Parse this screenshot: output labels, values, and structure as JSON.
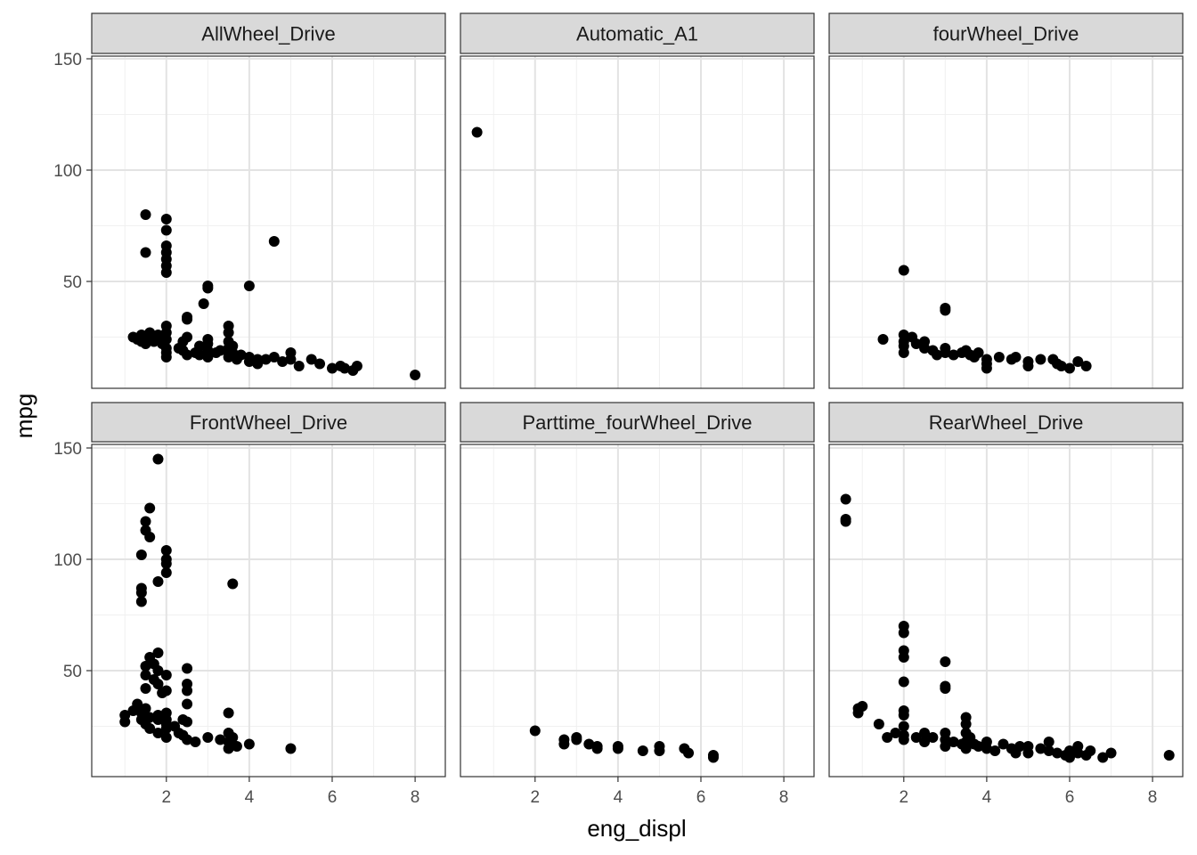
{
  "chart_data": {
    "type": "scatter",
    "xlabel": "eng_displ",
    "ylabel": "mpg",
    "xlim": [
      0.2,
      8.7
    ],
    "ylim": [
      5,
      155
    ],
    "x_ticks": [
      2,
      4,
      6,
      8
    ],
    "y_ticks": [
      50,
      100,
      150
    ],
    "x_tick_labels": [
      "2",
      "4",
      "6",
      "8"
    ],
    "y_tick_labels": [
      "50",
      "100",
      "150"
    ],
    "grid": true,
    "facet_layout": "2 rows x 3 columns, shared axes",
    "point_color": "#000000",
    "panels": [
      {
        "label": "AllWheel_Drive",
        "points": [
          [
            1.2,
            25
          ],
          [
            1.3,
            24
          ],
          [
            1.4,
            23
          ],
          [
            1.4,
            26
          ],
          [
            1.5,
            24
          ],
          [
            1.5,
            22
          ],
          [
            1.6,
            27
          ],
          [
            1.6,
            25
          ],
          [
            1.7,
            23
          ],
          [
            1.8,
            24
          ],
          [
            1.8,
            26
          ],
          [
            1.9,
            22
          ],
          [
            2.0,
            24
          ],
          [
            2.0,
            20
          ],
          [
            2.0,
            18
          ],
          [
            2.0,
            27
          ],
          [
            2.0,
            30
          ],
          [
            2.0,
            16
          ],
          [
            1.5,
            80
          ],
          [
            1.5,
            63
          ],
          [
            2.0,
            78
          ],
          [
            2.0,
            73
          ],
          [
            2.0,
            66
          ],
          [
            2.0,
            63
          ],
          [
            2.0,
            60
          ],
          [
            2.0,
            57
          ],
          [
            2.0,
            54
          ],
          [
            2.3,
            20
          ],
          [
            2.4,
            19
          ],
          [
            2.4,
            23
          ],
          [
            2.5,
            25
          ],
          [
            2.5,
            17
          ],
          [
            2.5,
            33
          ],
          [
            2.5,
            34
          ],
          [
            2.7,
            18
          ],
          [
            2.8,
            21
          ],
          [
            2.8,
            17
          ],
          [
            3.0,
            24
          ],
          [
            3.0,
            19
          ],
          [
            3.0,
            22
          ],
          [
            3.0,
            16
          ],
          [
            3.0,
            47
          ],
          [
            3.0,
            48
          ],
          [
            2.9,
            40
          ],
          [
            3.2,
            18
          ],
          [
            3.3,
            19
          ],
          [
            3.5,
            30
          ],
          [
            3.5,
            27
          ],
          [
            3.5,
            23
          ],
          [
            3.5,
            20
          ],
          [
            3.5,
            18
          ],
          [
            3.5,
            16
          ],
          [
            3.6,
            21
          ],
          [
            3.6,
            18
          ],
          [
            3.7,
            15
          ],
          [
            3.8,
            17
          ],
          [
            4.0,
            16
          ],
          [
            4.0,
            14
          ],
          [
            4.0,
            48
          ],
          [
            4.2,
            15
          ],
          [
            4.2,
            13
          ],
          [
            4.4,
            15
          ],
          [
            4.6,
            16
          ],
          [
            4.6,
            68
          ],
          [
            4.8,
            14
          ],
          [
            5.0,
            18
          ],
          [
            5.0,
            15
          ],
          [
            5.2,
            12
          ],
          [
            5.5,
            15
          ],
          [
            5.7,
            13
          ],
          [
            6.0,
            11
          ],
          [
            6.2,
            12
          ],
          [
            6.3,
            11
          ],
          [
            6.5,
            10
          ],
          [
            6.6,
            12
          ],
          [
            8.0,
            8
          ]
        ]
      },
      {
        "label": "Automatic_A1",
        "points": [
          [
            0.6,
            117
          ]
        ]
      },
      {
        "label": "fourWheel_Drive",
        "points": [
          [
            1.5,
            24
          ],
          [
            2.0,
            55
          ],
          [
            2.0,
            26
          ],
          [
            2.0,
            23
          ],
          [
            2.0,
            21
          ],
          [
            2.0,
            18
          ],
          [
            2.2,
            25
          ],
          [
            2.3,
            22
          ],
          [
            2.5,
            23
          ],
          [
            2.5,
            20
          ],
          [
            2.7,
            19
          ],
          [
            2.8,
            17
          ],
          [
            3.0,
            38
          ],
          [
            3.0,
            37
          ],
          [
            3.0,
            20
          ],
          [
            3.0,
            18
          ],
          [
            3.2,
            17
          ],
          [
            3.4,
            18
          ],
          [
            3.5,
            19
          ],
          [
            3.6,
            17
          ],
          [
            3.7,
            16
          ],
          [
            3.8,
            18
          ],
          [
            4.0,
            15
          ],
          [
            4.0,
            13
          ],
          [
            4.0,
            11
          ],
          [
            4.3,
            16
          ],
          [
            4.6,
            15
          ],
          [
            4.7,
            16
          ],
          [
            5.0,
            14
          ],
          [
            5.0,
            12
          ],
          [
            5.3,
            15
          ],
          [
            5.6,
            15
          ],
          [
            5.7,
            13
          ],
          [
            5.8,
            12
          ],
          [
            6.0,
            11
          ],
          [
            6.2,
            14
          ],
          [
            6.4,
            12
          ]
        ]
      },
      {
        "label": "FrontWheel_Drive",
        "points": [
          [
            1.0,
            30
          ],
          [
            1.0,
            27
          ],
          [
            1.2,
            32
          ],
          [
            1.3,
            35
          ],
          [
            1.4,
            28
          ],
          [
            1.4,
            31
          ],
          [
            1.5,
            33
          ],
          [
            1.5,
            26
          ],
          [
            1.6,
            29
          ],
          [
            1.6,
            24
          ],
          [
            1.8,
            30
          ],
          [
            1.8,
            28
          ],
          [
            1.8,
            22
          ],
          [
            2.0,
            26
          ],
          [
            2.0,
            24
          ],
          [
            2.0,
            20
          ],
          [
            2.0,
            28
          ],
          [
            2.0,
            31
          ],
          [
            1.4,
            102
          ],
          [
            1.4,
            87
          ],
          [
            1.4,
            85
          ],
          [
            1.4,
            81
          ],
          [
            1.5,
            117
          ],
          [
            1.5,
            113
          ],
          [
            1.6,
            123
          ],
          [
            1.6,
            110
          ],
          [
            1.8,
            145
          ],
          [
            1.8,
            90
          ],
          [
            2.0,
            104
          ],
          [
            2.0,
            100
          ],
          [
            2.0,
            98
          ],
          [
            2.0,
            94
          ],
          [
            1.5,
            42
          ],
          [
            1.5,
            48
          ],
          [
            1.5,
            52
          ],
          [
            1.6,
            56
          ],
          [
            1.7,
            46
          ],
          [
            1.7,
            53
          ],
          [
            1.8,
            58
          ],
          [
            1.8,
            50
          ],
          [
            1.8,
            44
          ],
          [
            1.9,
            40
          ],
          [
            2.0,
            48
          ],
          [
            2.0,
            41
          ],
          [
            2.2,
            25
          ],
          [
            2.3,
            22
          ],
          [
            2.4,
            28
          ],
          [
            2.4,
            21
          ],
          [
            2.5,
            51
          ],
          [
            2.5,
            44
          ],
          [
            2.5,
            41
          ],
          [
            2.5,
            35
          ],
          [
            2.5,
            27
          ],
          [
            2.5,
            19
          ],
          [
            2.7,
            18
          ],
          [
            3.0,
            20
          ],
          [
            3.3,
            19
          ],
          [
            3.5,
            31
          ],
          [
            3.5,
            22
          ],
          [
            3.5,
            18
          ],
          [
            3.5,
            15
          ],
          [
            3.6,
            89
          ],
          [
            3.6,
            20
          ],
          [
            3.7,
            16
          ],
          [
            4.0,
            17
          ],
          [
            5.0,
            15
          ]
        ]
      },
      {
        "label": "Parttime_fourWheel_Drive",
        "points": [
          [
            2.0,
            23
          ],
          [
            2.7,
            19
          ],
          [
            2.7,
            17
          ],
          [
            3.0,
            20
          ],
          [
            3.0,
            19
          ],
          [
            3.3,
            17
          ],
          [
            3.5,
            16
          ],
          [
            3.5,
            15
          ],
          [
            4.0,
            16
          ],
          [
            4.0,
            15
          ],
          [
            4.6,
            14
          ],
          [
            5.0,
            16
          ],
          [
            5.0,
            14
          ],
          [
            5.6,
            15
          ],
          [
            5.7,
            13
          ],
          [
            6.3,
            11
          ],
          [
            6.3,
            12
          ]
        ]
      },
      {
        "label": "RearWheel_Drive",
        "points": [
          [
            0.6,
            127
          ],
          [
            0.6,
            118
          ],
          [
            0.6,
            117
          ],
          [
            0.9,
            31
          ],
          [
            0.9,
            33
          ],
          [
            1.0,
            34
          ],
          [
            1.4,
            26
          ],
          [
            1.6,
            20
          ],
          [
            1.8,
            22
          ],
          [
            2.0,
            70
          ],
          [
            2.0,
            67
          ],
          [
            2.0,
            59
          ],
          [
            2.0,
            56
          ],
          [
            2.0,
            45
          ],
          [
            2.0,
            32
          ],
          [
            2.0,
            30
          ],
          [
            2.0,
            25
          ],
          [
            2.0,
            21
          ],
          [
            2.0,
            19
          ],
          [
            2.3,
            20
          ],
          [
            2.5,
            22
          ],
          [
            2.5,
            18
          ],
          [
            2.7,
            20
          ],
          [
            3.0,
            54
          ],
          [
            3.0,
            43
          ],
          [
            3.0,
            42
          ],
          [
            3.0,
            22
          ],
          [
            3.0,
            19
          ],
          [
            3.0,
            16
          ],
          [
            3.2,
            18
          ],
          [
            3.4,
            17
          ],
          [
            3.5,
            29
          ],
          [
            3.5,
            26
          ],
          [
            3.5,
            22
          ],
          [
            3.5,
            18
          ],
          [
            3.5,
            15
          ],
          [
            3.6,
            20
          ],
          [
            3.7,
            17
          ],
          [
            3.8,
            16
          ],
          [
            4.0,
            18
          ],
          [
            4.0,
            15
          ],
          [
            4.2,
            14
          ],
          [
            4.4,
            17
          ],
          [
            4.6,
            15
          ],
          [
            4.7,
            13
          ],
          [
            4.8,
            16
          ],
          [
            5.0,
            16
          ],
          [
            5.0,
            13
          ],
          [
            5.3,
            15
          ],
          [
            5.5,
            18
          ],
          [
            5.5,
            14
          ],
          [
            5.7,
            13
          ],
          [
            5.9,
            12
          ],
          [
            6.0,
            14
          ],
          [
            6.0,
            11
          ],
          [
            6.2,
            16
          ],
          [
            6.2,
            13
          ],
          [
            6.4,
            12
          ],
          [
            6.5,
            14
          ],
          [
            6.8,
            11
          ],
          [
            7.0,
            13
          ],
          [
            8.4,
            12
          ]
        ]
      }
    ]
  }
}
